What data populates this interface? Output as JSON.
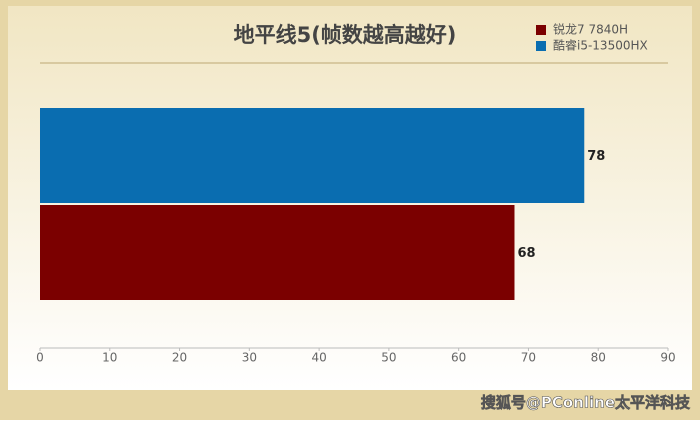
{
  "chart_data": {
    "type": "bar",
    "orientation": "horizontal",
    "title": "地平线5(帧数越高越好)",
    "categories": [
      null
    ],
    "series": [
      {
        "name": "锐龙7 7840H",
        "color": "#7b0000",
        "values": [
          68
        ]
      },
      {
        "name": "酷睿i5-13500HX",
        "color": "#0a6db0",
        "values": [
          78
        ]
      }
    ],
    "xlim": [
      0,
      90
    ],
    "xticks": [
      0,
      10,
      20,
      30,
      40,
      50,
      60,
      70,
      80,
      90
    ],
    "legend": "top-right",
    "grid": false
  },
  "watermark": "搜狐号@PConline太平洋科技"
}
